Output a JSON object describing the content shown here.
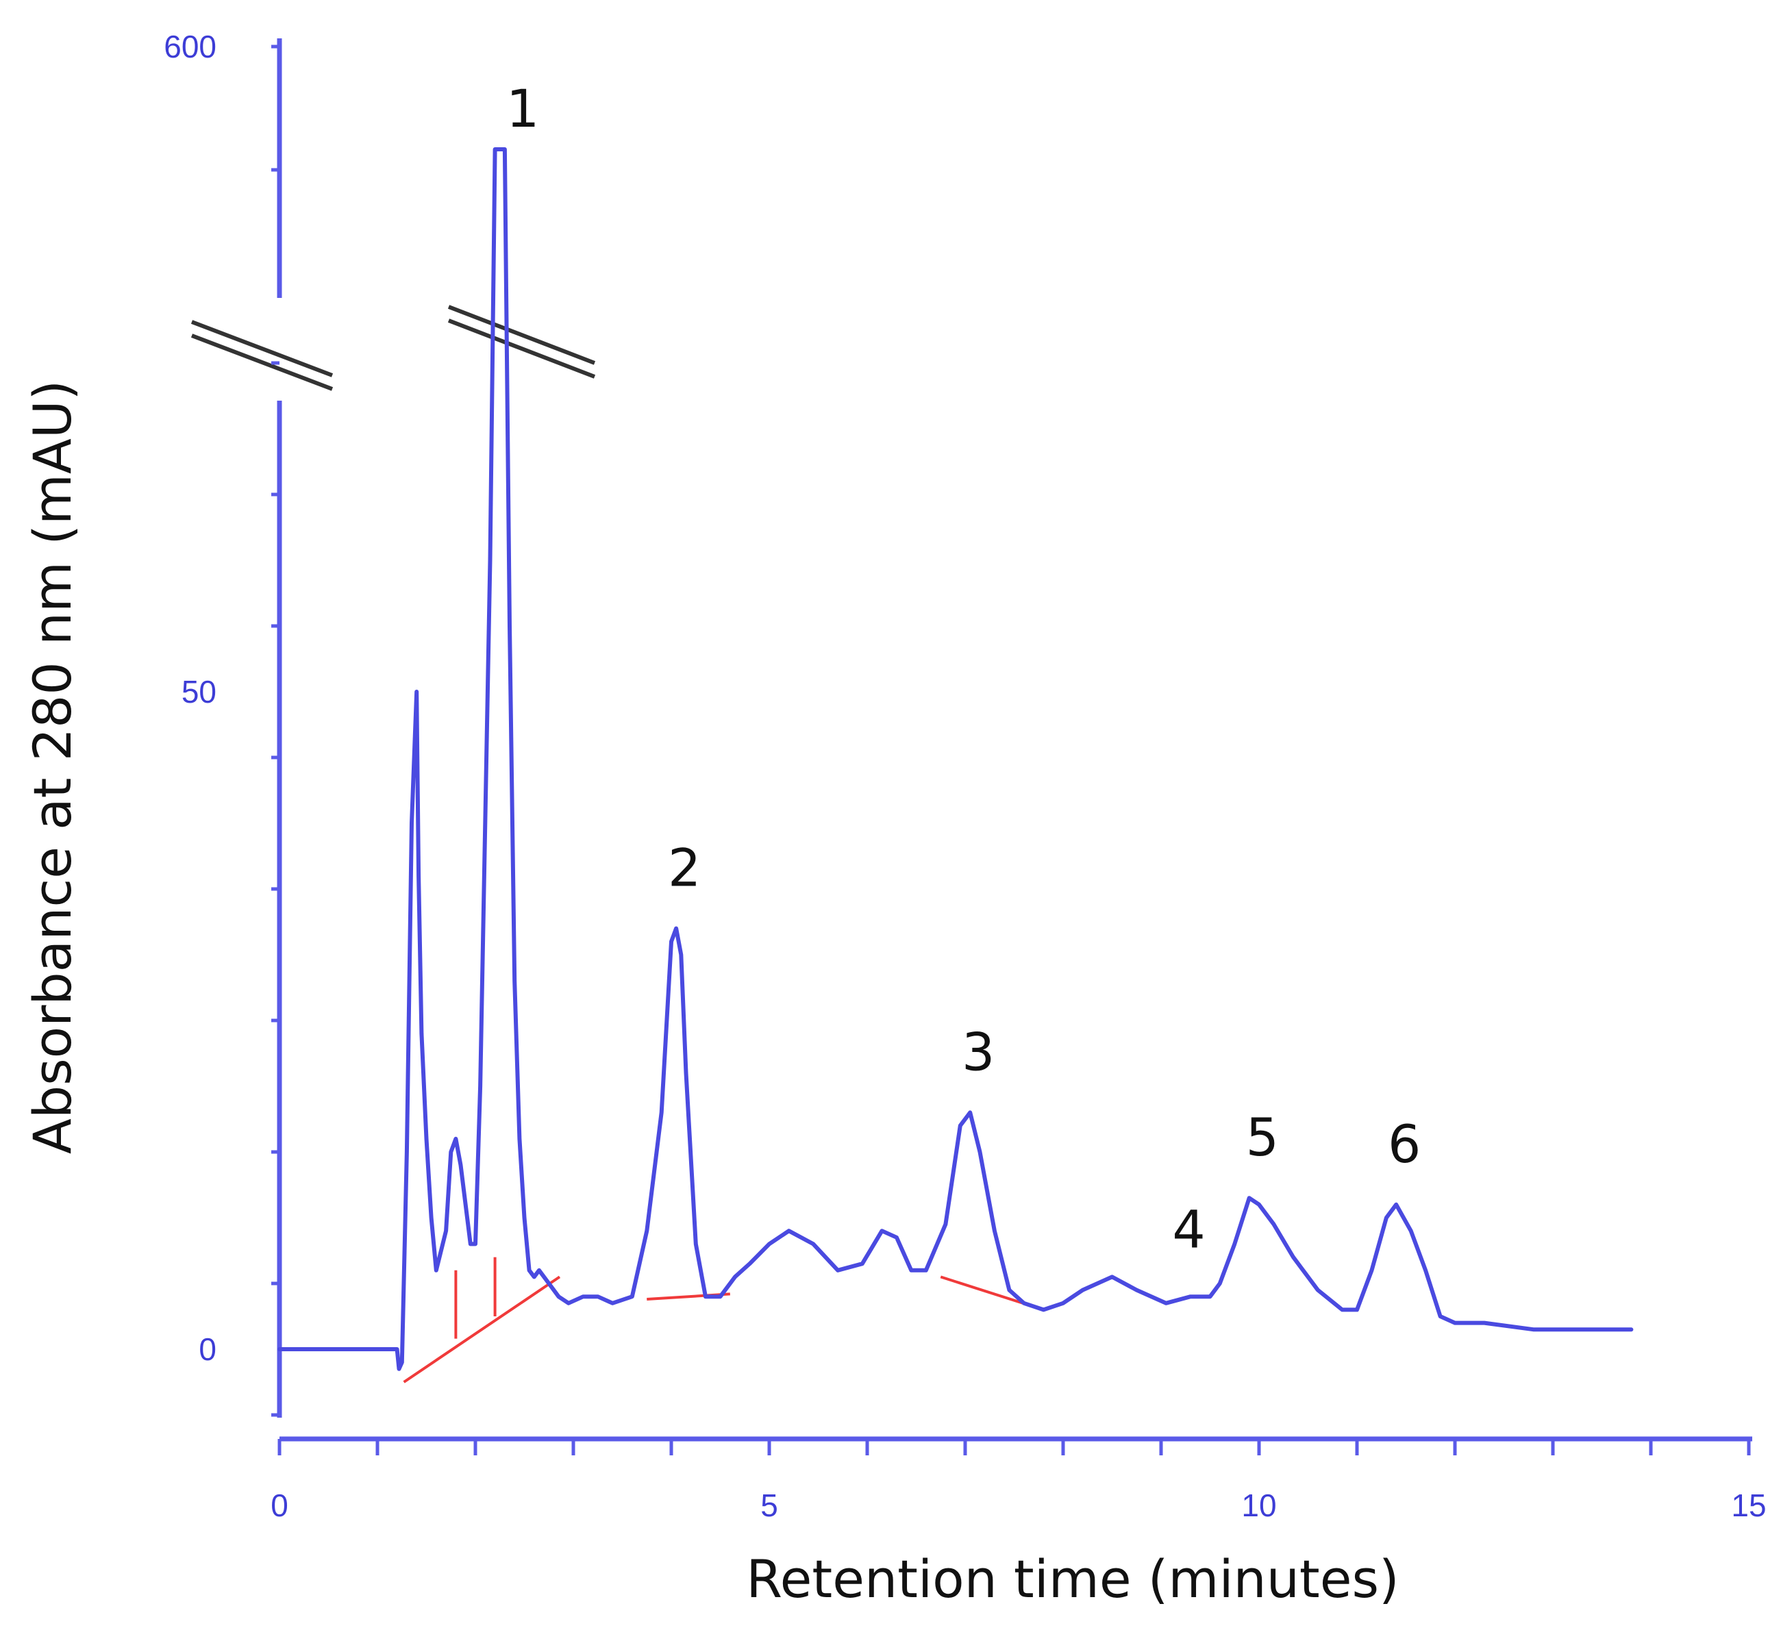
{
  "chart_data": {
    "type": "line",
    "title": "",
    "xlabel": "Retention time (minutes)",
    "ylabel": "Absorbance at 280 nm (mAU)",
    "xlim": [
      0,
      15
    ],
    "ylim": [
      -5,
      100
    ],
    "y_axis_break": {
      "below": 100,
      "above_label_value": 600
    },
    "x_ticks": [
      0,
      5,
      10,
      15
    ],
    "x_tick_labels": [
      "0",
      "5",
      "10",
      "15"
    ],
    "x_minor_tick_step": 1,
    "y_tick_labels": [
      {
        "value": 0,
        "label": "0"
      },
      {
        "value": 50,
        "label": "50"
      },
      {
        "value": 600,
        "label": "600"
      }
    ],
    "y_minor_tick_step": 10,
    "grid": false,
    "colors": {
      "trace": "#4a4ae0",
      "baseline": "#f03a3a",
      "axis": "#5a5ae8",
      "labels": "#3d3dd6",
      "text": "#111111"
    },
    "series": [
      {
        "x": [
          0,
          1.2,
          1.22,
          1.25,
          1.3,
          1.35,
          1.4,
          1.42,
          1.45,
          1.5,
          1.55,
          1.6,
          1.7,
          1.75,
          1.8,
          1.85,
          1.95,
          2.0,
          2.05,
          2.15,
          2.2,
          2.25,
          2.3,
          2.35,
          2.4,
          2.45,
          2.5,
          2.55,
          2.6,
          2.65,
          2.75,
          2.85,
          2.95,
          3.1,
          3.25,
          3.4,
          3.6,
          3.75,
          3.9,
          4.0,
          4.05,
          4.1,
          4.15,
          4.25,
          4.35,
          4.5,
          4.65,
          4.8,
          5.0,
          5.2,
          5.45,
          5.7,
          5.95,
          6.15,
          6.3,
          6.45,
          6.6,
          6.8,
          6.95,
          7.05,
          7.15,
          7.3,
          7.45,
          7.6,
          7.8,
          8.0,
          8.2,
          8.5,
          8.75,
          9.05,
          9.3,
          9.5,
          9.6,
          9.75,
          9.9,
          10.0,
          10.15,
          10.35,
          10.6,
          10.85,
          11.0,
          11.15,
          11.3,
          11.4,
          11.55,
          11.7,
          11.85,
          12.0,
          12.3,
          12.8,
          13.2,
          13.5,
          13.8
        ],
        "y": [
          0,
          0,
          -1.5,
          -1,
          15,
          40,
          50,
          36,
          24,
          16,
          10,
          6,
          9,
          15,
          16,
          14,
          8,
          8,
          20,
          60,
          100,
          100,
          100,
          55,
          28,
          16,
          10,
          6,
          5.5,
          6,
          5,
          4,
          3.5,
          4,
          4,
          3.5,
          4,
          9,
          18,
          31,
          32,
          30,
          21,
          8,
          4,
          4,
          5.5,
          6.5,
          8,
          9,
          8,
          6,
          6.5,
          9,
          8.5,
          6,
          6,
          9.5,
          17,
          18,
          15,
          9,
          4.5,
          3.5,
          3,
          3.5,
          4.5,
          5.5,
          4.5,
          3.5,
          4,
          4,
          5,
          8,
          11.5,
          11,
          9.5,
          7,
          4.5,
          3,
          3,
          6,
          10,
          11,
          9,
          6,
          2.5,
          2,
          2,
          1.5,
          1.5,
          1.5,
          1.5
        ]
      }
    ],
    "integration_baseline": {
      "segments": [
        {
          "x": [
            1.27,
            2.86
          ],
          "y": [
            -2.5,
            5.5
          ]
        },
        {
          "x": [
            3.75,
            4.6
          ],
          "y": [
            3.8,
            4.2
          ]
        },
        {
          "x": [
            6.75,
            7.8
          ],
          "y": [
            5.5,
            3.0
          ]
        }
      ],
      "drops": [
        {
          "x": 1.8,
          "from": 0.8,
          "to": 6.0
        },
        {
          "x": 2.2,
          "from": 2.5,
          "to": 7.0
        }
      ]
    },
    "annotations": [
      {
        "text": "1",
        "x": 2.4,
        "y": 100
      },
      {
        "text": "2",
        "x": 4.05,
        "y": 32
      },
      {
        "text": "3",
        "x": 7.05,
        "y": 18
      },
      {
        "text": "4",
        "x": 9.2,
        "y": 4.5
      },
      {
        "text": "5",
        "x": 9.95,
        "y": 11.5
      },
      {
        "text": "6",
        "x": 11.4,
        "y": 11
      }
    ]
  }
}
